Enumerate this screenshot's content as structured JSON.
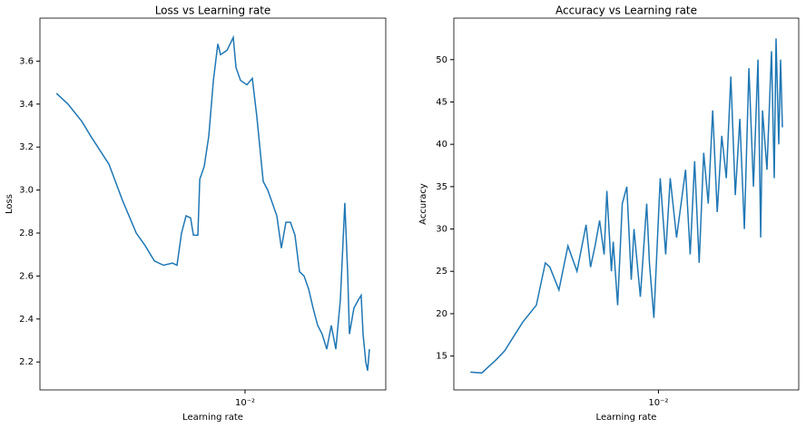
{
  "chart_data": [
    {
      "type": "line",
      "title": "Loss vs Learning rate",
      "x_label": "Learning rate",
      "y_label": "Loss",
      "xscale": "log",
      "color": "#1f77b4",
      "x": [
        0.00127,
        0.00144,
        0.001676,
        0.00185,
        0.002257,
        0.002619,
        0.002893,
        0.00304,
        0.003357,
        0.003707,
        0.004094,
        0.004521,
        0.00475,
        0.004992,
        0.005246,
        0.005512,
        0.00568,
        0.005969,
        0.006089,
        0.006397,
        0.006724,
        0.007067,
        0.007425,
        0.007649,
        0.008202,
        0.00879,
        0.009056,
        0.009515,
        0.0102,
        0.01083,
        0.01138,
        0.0122,
        0.01282,
        0.01347,
        0.01416,
        0.01488,
        0.01563,
        0.01643,
        0.01727,
        0.01814,
        0.01906,
        0.02003,
        0.02105,
        0.02212,
        0.02324,
        0.02443,
        0.02567,
        0.02698,
        0.02835,
        0.02979,
        0.0307,
        0.03131,
        0.0329,
        0.03457,
        0.03562,
        0.03634,
        0.03744,
        0.03819,
        0.03896
      ],
      "values": [
        3.45,
        3.4,
        3.32,
        3.25,
        3.12,
        2.95,
        2.85,
        2.8,
        2.74,
        2.67,
        2.65,
        2.66,
        2.65,
        2.8,
        2.88,
        2.87,
        2.79,
        2.79,
        3.05,
        3.11,
        3.25,
        3.51,
        3.68,
        3.63,
        3.65,
        3.71,
        3.57,
        3.51,
        3.49,
        3.52,
        3.34,
        3.04,
        3.0,
        2.94,
        2.88,
        2.73,
        2.85,
        2.85,
        2.79,
        2.62,
        2.6,
        2.54,
        2.45,
        2.37,
        2.33,
        2.26,
        2.37,
        2.26,
        2.49,
        2.94,
        2.62,
        2.33,
        2.45,
        2.49,
        2.51,
        2.33,
        2.2,
        2.16,
        2.26
      ],
      "xlim": [
        0.00106,
        0.0466
      ],
      "xticks": [
        {
          "value": 0.01,
          "label": "10⁻²"
        }
      ],
      "ylim": [
        2.07,
        3.8
      ],
      "yticks": [
        2.2,
        2.4,
        2.6,
        2.8,
        {
          "value": 3,
          "label": "3.0"
        },
        3.2,
        3.4,
        3.6
      ]
    },
    {
      "type": "line",
      "title": "Accuracy vs Learning rate",
      "x_label": "Learning rate",
      "y_label": "Accuracy",
      "xscale": "log",
      "color": "#1f77b4",
      "x": [
        0.00127,
        0.00144,
        0.001676,
        0.00185,
        0.002257,
        0.002619,
        0.002893,
        0.00304,
        0.003357,
        0.003707,
        0.004094,
        0.004521,
        0.00475,
        0.004992,
        0.005246,
        0.005512,
        0.00568,
        0.005969,
        0.006089,
        0.006397,
        0.006724,
        0.007067,
        0.007425,
        0.007649,
        0.008202,
        0.00879,
        0.009056,
        0.009515,
        0.0102,
        0.01083,
        0.01138,
        0.0122,
        0.01282,
        0.01347,
        0.01416,
        0.01488,
        0.01563,
        0.01643,
        0.01727,
        0.01814,
        0.01906,
        0.02003,
        0.02105,
        0.02212,
        0.02324,
        0.02443,
        0.02567,
        0.02698,
        0.02835,
        0.02979,
        0.0307,
        0.03131,
        0.0329,
        0.03457,
        0.03562,
        0.03634,
        0.03744,
        0.03819,
        0.03896
      ],
      "values": [
        13.1,
        13.0,
        14.5,
        15.6,
        19.0,
        21.0,
        26.0,
        25.5,
        22.8,
        28.0,
        25.0,
        30.5,
        25.5,
        28,
        31,
        27,
        34.5,
        25,
        28.5,
        21,
        33,
        35,
        24,
        30,
        22,
        33,
        26,
        19.5,
        36,
        27,
        36,
        29,
        33,
        37,
        27,
        38,
        26,
        39,
        33,
        44,
        32,
        41,
        36,
        48,
        34,
        43,
        30,
        49,
        35,
        50,
        29,
        44,
        37,
        51,
        36,
        52.5,
        40,
        50,
        42
      ],
      "xlim": [
        0.00106,
        0.0466
      ],
      "xticks": [
        {
          "value": 0.01,
          "label": "10⁻²"
        }
      ],
      "ylim": [
        11.0,
        54.9
      ],
      "yticks": [
        15,
        20,
        25,
        30,
        35,
        40,
        45,
        50
      ]
    }
  ]
}
